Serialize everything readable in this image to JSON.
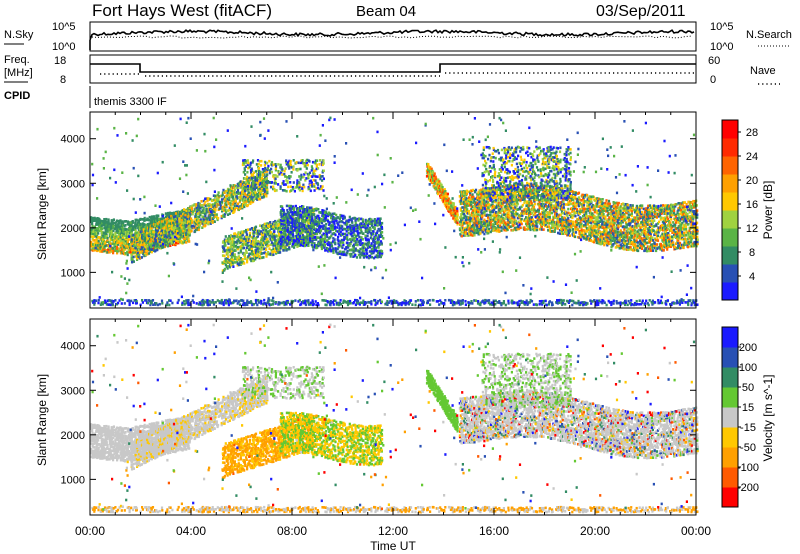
{
  "header": {
    "station": "Fort Hays West (fitACF)",
    "beam": "Beam 04",
    "date": "03/Sep/2011"
  },
  "noise_panel": {
    "left_label": "N.Sky",
    "left_ticks": [
      "10^5",
      "10^0"
    ],
    "right_label": "N.Search",
    "right_ticks": [
      "10^5",
      "10^0"
    ]
  },
  "freq_panel": {
    "left_label_1": "Freq.",
    "left_label_2": "[MHz]",
    "left_ticks": [
      "18",
      "8"
    ],
    "right_label": "Nave",
    "right_ticks": [
      "60",
      "0"
    ]
  },
  "cpid_panel": {
    "label": "CPID",
    "text": "themis 3300 IF"
  },
  "colors": {
    "power_scale": [
      "#1a1aff",
      "#2850b4",
      "#328c64",
      "#5ab446",
      "#a0d240",
      "#ffc800",
      "#ffa000",
      "#ff6400",
      "#ff2a00",
      "#ff0000"
    ],
    "velocity_scale": [
      "#ff0000",
      "#ff5a00",
      "#ffa000",
      "#ffc800",
      "#c8c8c8",
      "#64c832",
      "#328c64",
      "#2850b4",
      "#1a1aff"
    ]
  },
  "chart_data": [
    {
      "type": "heatmap",
      "title": "",
      "xlabel": "",
      "ylabel": "Slant Range [km]",
      "x_ticks": [
        "00:00",
        "04:00",
        "08:00",
        "12:00",
        "16:00",
        "20:00",
        "00:00"
      ],
      "y_ticks": [
        1000,
        2000,
        3000,
        4000
      ],
      "ylim": [
        200,
        4600
      ],
      "colorbar": {
        "label": "Power [dB]",
        "ticks": [
          4,
          8,
          12,
          16,
          20,
          24,
          28
        ],
        "range": [
          0,
          30
        ]
      }
    },
    {
      "type": "heatmap",
      "title": "",
      "xlabel": "Time UT",
      "ylabel": "Slant Range [km]",
      "x_ticks": [
        "00:00",
        "04:00",
        "08:00",
        "12:00",
        "16:00",
        "20:00",
        "00:00"
      ],
      "y_ticks": [
        1000,
        2000,
        3000,
        4000
      ],
      "ylim": [
        200,
        4600
      ],
      "colorbar": {
        "label": "Velocity [m s^-1]",
        "ticks": [
          "200",
          "100",
          "50",
          "15",
          "-15",
          "-50",
          "-100",
          "-200"
        ],
        "range": [
          -250,
          250
        ]
      }
    }
  ]
}
